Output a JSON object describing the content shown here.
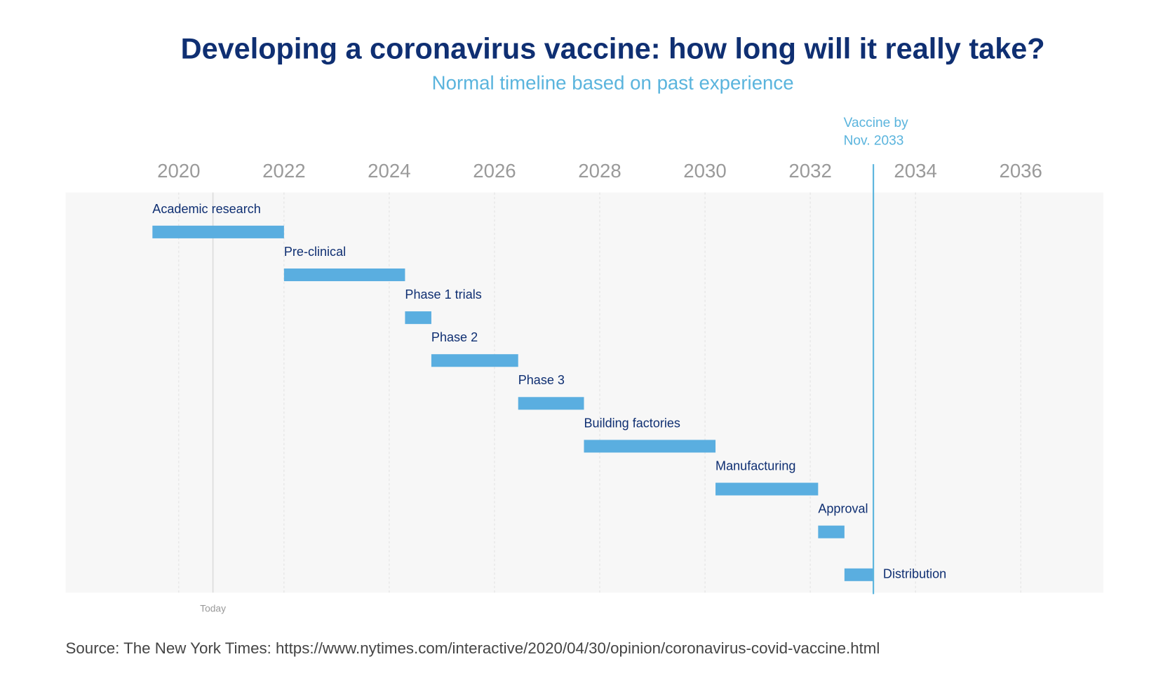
{
  "chart_data": {
    "type": "gantt",
    "title": "Developing a coronavirus vaccine: how long will it really take?",
    "subtitle": "Normal timeline based on past experience",
    "categories": [
      "Academic research",
      "Pre-clinical",
      "Phase 1 trials",
      "Phase 2",
      "Phase 3",
      "Building factories",
      "Manufacturing",
      "Approval",
      "Distribution"
    ],
    "start": [
      2019.5,
      2022.0,
      2024.3,
      2024.8,
      2026.45,
      2027.7,
      2030.2,
      2032.15,
      2032.65
    ],
    "end": [
      2022.0,
      2024.3,
      2024.8,
      2026.45,
      2027.7,
      2030.2,
      2032.15,
      2032.65,
      2033.2
    ],
    "color": "#5aaee0",
    "xlim": [
      2017.85,
      2037.57
    ],
    "xticks": [
      2020,
      2022,
      2024,
      2026,
      2028,
      2030,
      2032,
      2034,
      2036
    ],
    "grid": true,
    "annotations": [
      {
        "text": "Today",
        "x": 2020.65
      },
      {
        "text": [
          "Vaccine by",
          "Nov. 2033"
        ],
        "x": 2033.2
      }
    ],
    "source": "Source: The New York Times: https://www.nytimes.com/interactive/2020/04/30/opinion/coronavirus-covid-vaccine.html"
  }
}
